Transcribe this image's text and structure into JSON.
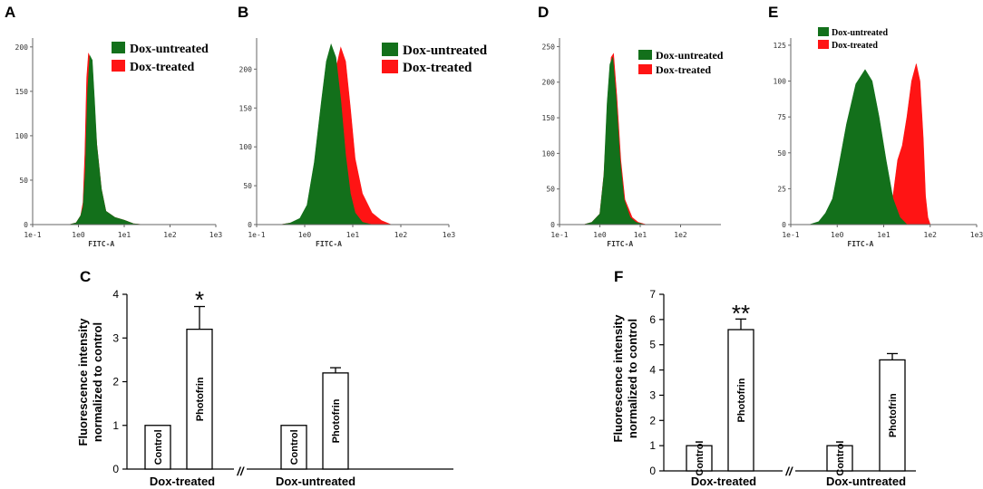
{
  "colors": {
    "green": "#13701b",
    "red": "#ff1414"
  },
  "histograms": [
    {
      "letter": "A",
      "xlabel": "FITC-A",
      "xticks": [
        "1e-1",
        "1e0",
        "1e1",
        "1e2",
        "1e3"
      ],
      "yticks": [
        "0",
        "50",
        "100",
        "150",
        "200"
      ],
      "ymax": 210,
      "legend": [
        "Dox-untreated",
        "Dox-treated"
      ],
      "green": [
        [
          -1,
          0
        ],
        [
          -0.2,
          0
        ],
        [
          -0.05,
          2
        ],
        [
          0.05,
          10
        ],
        [
          0.1,
          20
        ],
        [
          0.15,
          60
        ],
        [
          0.2,
          150
        ],
        [
          0.25,
          190
        ],
        [
          0.3,
          185
        ],
        [
          0.35,
          140
        ],
        [
          0.4,
          90
        ],
        [
          0.5,
          40
        ],
        [
          0.6,
          15
        ],
        [
          0.8,
          8
        ],
        [
          1,
          5
        ],
        [
          1.2,
          1
        ],
        [
          1.4,
          0
        ]
      ],
      "red": [
        [
          -1,
          0
        ],
        [
          -0.2,
          0
        ],
        [
          -0.05,
          2
        ],
        [
          0.05,
          10
        ],
        [
          0.1,
          25
        ],
        [
          0.14,
          80
        ],
        [
          0.18,
          165
        ],
        [
          0.22,
          193
        ],
        [
          0.27,
          185
        ],
        [
          0.33,
          140
        ],
        [
          0.4,
          90
        ],
        [
          0.5,
          40
        ],
        [
          0.6,
          15
        ],
        [
          0.8,
          8
        ],
        [
          1,
          5
        ],
        [
          1.2,
          1
        ],
        [
          1.4,
          0
        ]
      ]
    },
    {
      "letter": "B",
      "xlabel": "FITC-A",
      "xticks": [
        "1e-1",
        "1e0",
        "1e1",
        "1e2",
        "1e3"
      ],
      "yticks": [
        "0",
        "50",
        "100",
        "150",
        "200"
      ],
      "ymax": 240,
      "legend": [
        "Dox-untreated",
        "Dox-treated"
      ],
      "green": [
        [
          -1,
          0
        ],
        [
          -0.5,
          0
        ],
        [
          -0.3,
          2
        ],
        [
          -0.1,
          8
        ],
        [
          0.05,
          25
        ],
        [
          0.2,
          80
        ],
        [
          0.35,
          160
        ],
        [
          0.45,
          210
        ],
        [
          0.55,
          232
        ],
        [
          0.65,
          215
        ],
        [
          0.75,
          160
        ],
        [
          0.85,
          90
        ],
        [
          0.95,
          40
        ],
        [
          1.05,
          15
        ],
        [
          1.2,
          3
        ],
        [
          1.4,
          0
        ]
      ],
      "red": [
        [
          -1,
          0
        ],
        [
          -0.5,
          0
        ],
        [
          -0.3,
          2
        ],
        [
          -0.1,
          6
        ],
        [
          0.1,
          15
        ],
        [
          0.3,
          50
        ],
        [
          0.5,
          130
        ],
        [
          0.65,
          200
        ],
        [
          0.75,
          228
        ],
        [
          0.85,
          210
        ],
        [
          0.95,
          150
        ],
        [
          1.05,
          85
        ],
        [
          1.2,
          40
        ],
        [
          1.4,
          15
        ],
        [
          1.6,
          5
        ],
        [
          1.8,
          0
        ]
      ]
    },
    {
      "letter": "D",
      "xlabel": "FITC-A",
      "xticks": [
        "1e-1",
        "1e0",
        "1e1",
        "1e2"
      ],
      "yticks": [
        "0",
        "50",
        "100",
        "150",
        "200",
        "250"
      ],
      "ymax": 262,
      "legend": [
        "Dox-untreated",
        "Dox-treated"
      ],
      "green": [
        [
          -1,
          0
        ],
        [
          -0.4,
          0
        ],
        [
          -0.2,
          3
        ],
        [
          0,
          15
        ],
        [
          0.1,
          70
        ],
        [
          0.18,
          170
        ],
        [
          0.25,
          225
        ],
        [
          0.32,
          235
        ],
        [
          0.4,
          180
        ],
        [
          0.5,
          90
        ],
        [
          0.6,
          35
        ],
        [
          0.75,
          10
        ],
        [
          0.9,
          3
        ],
        [
          1.1,
          0
        ]
      ],
      "red": [
        [
          -1,
          0
        ],
        [
          -0.4,
          0
        ],
        [
          -0.2,
          3
        ],
        [
          0,
          15
        ],
        [
          0.1,
          70
        ],
        [
          0.2,
          170
        ],
        [
          0.28,
          235
        ],
        [
          0.34,
          240
        ],
        [
          0.42,
          180
        ],
        [
          0.52,
          90
        ],
        [
          0.62,
          35
        ],
        [
          0.8,
          10
        ],
        [
          0.95,
          3
        ],
        [
          1.15,
          0
        ]
      ]
    },
    {
      "letter": "E",
      "xlabel": "FITC-A",
      "xticks": [
        "1e-1",
        "1e0",
        "1e1",
        "1e2",
        "1e3"
      ],
      "yticks": [
        "0",
        "25",
        "50",
        "75",
        "100",
        "125"
      ],
      "ymax": 130,
      "legend": [
        "Dox-untreated",
        "Dox-treated"
      ],
      "green": [
        [
          -1,
          0
        ],
        [
          -0.6,
          0
        ],
        [
          -0.4,
          2
        ],
        [
          -0.25,
          8
        ],
        [
          -0.1,
          18
        ],
        [
          0,
          35
        ],
        [
          0.2,
          70
        ],
        [
          0.4,
          98
        ],
        [
          0.6,
          108
        ],
        [
          0.75,
          100
        ],
        [
          0.9,
          75
        ],
        [
          1.05,
          45
        ],
        [
          1.2,
          18
        ],
        [
          1.35,
          5
        ],
        [
          1.5,
          0
        ]
      ],
      "red": [
        [
          -1,
          0
        ],
        [
          1.1,
          0
        ],
        [
          1.2,
          20
        ],
        [
          1.3,
          45
        ],
        [
          1.4,
          55
        ],
        [
          1.5,
          75
        ],
        [
          1.6,
          100
        ],
        [
          1.7,
          112
        ],
        [
          1.78,
          100
        ],
        [
          1.85,
          60
        ],
        [
          1.9,
          20
        ],
        [
          1.95,
          5
        ],
        [
          2.0,
          0
        ]
      ]
    }
  ],
  "bar_panels": [
    {
      "letter": "C",
      "ylabel_line1": "Fluorescence intensity",
      "ylabel_line2": "normalized to control",
      "yticks": [
        "0",
        "1",
        "2",
        "3",
        "4"
      ],
      "ymax": 4,
      "groups": [
        "Dox-treated",
        "Dox-untreated"
      ],
      "bar_labels": [
        "Control",
        "Photofrin"
      ],
      "significance": "*",
      "axis_break": "//"
    },
    {
      "letter": "F",
      "ylabel_line1": "Fluorescence intensity",
      "ylabel_line2": "normalized to control",
      "yticks": [
        "0",
        "1",
        "2",
        "3",
        "4",
        "5",
        "6",
        "7"
      ],
      "ymax": 7,
      "groups": [
        "Dox-treated",
        "Dox-untreated"
      ],
      "bar_labels": [
        "Control",
        "Photofrin"
      ],
      "significance": "**",
      "axis_break": "//"
    }
  ],
  "chart_data": [
    {
      "panel": "C",
      "type": "bar",
      "title": "",
      "xlabel": "",
      "ylabel": "Fluorescence intensity normalized to control",
      "ylim": [
        0,
        4
      ],
      "categories": [
        "Dox-treated Control",
        "Dox-treated Photofrin",
        "Dox-untreated Control",
        "Dox-untreated Photofrin"
      ],
      "values": [
        1.0,
        3.2,
        1.0,
        2.2
      ],
      "errors": [
        0,
        0.52,
        0,
        0.12
      ]
    },
    {
      "panel": "F",
      "type": "bar",
      "title": "",
      "xlabel": "",
      "ylabel": "Fluorescence intensity normalized to control",
      "ylim": [
        0,
        7
      ],
      "categories": [
        "Dox-treated Control",
        "Dox-treated Photofrin",
        "Dox-untreated Control",
        "Dox-untreated Photofrin"
      ],
      "values": [
        1.0,
        5.6,
        1.0,
        4.4
      ],
      "errors": [
        0,
        0.42,
        0,
        0.25
      ]
    }
  ]
}
